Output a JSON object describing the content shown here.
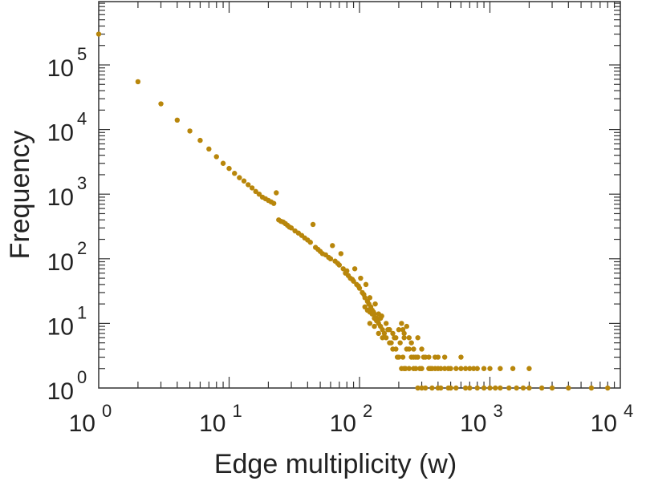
{
  "chart_data": {
    "type": "scatter",
    "xlabel": "Edge multiplicity (w)",
    "ylabel": "Frequency",
    "xscale": "log",
    "yscale": "log",
    "xlim": [
      1,
      10000
    ],
    "ylim": [
      1,
      1000000
    ],
    "grid": false,
    "legend": "none",
    "marker_color": "#b8860b",
    "x_ticks": [
      {
        "base": "10",
        "exp": "0",
        "value": 1
      },
      {
        "base": "10",
        "exp": "1",
        "value": 10
      },
      {
        "base": "10",
        "exp": "2",
        "value": 100
      },
      {
        "base": "10",
        "exp": "3",
        "value": 1000
      },
      {
        "base": "10",
        "exp": "4",
        "value": 10000
      }
    ],
    "y_ticks": [
      {
        "base": "10",
        "exp": "0",
        "value": 1
      },
      {
        "base": "10",
        "exp": "1",
        "value": 10
      },
      {
        "base": "10",
        "exp": "2",
        "value": 100
      },
      {
        "base": "10",
        "exp": "3",
        "value": 1000
      },
      {
        "base": "10",
        "exp": "4",
        "value": 10000
      },
      {
        "base": "10",
        "exp": "5",
        "value": 100000
      }
    ],
    "series": [
      {
        "points": [
          [
            1,
            300000
          ],
          [
            2,
            55000
          ],
          [
            3,
            25000
          ],
          [
            4,
            14000
          ],
          [
            5,
            9500
          ],
          [
            6,
            6800
          ],
          [
            7,
            5000
          ],
          [
            8,
            3800
          ],
          [
            9,
            3000
          ],
          [
            10,
            2500
          ],
          [
            11,
            2100
          ],
          [
            12,
            1800
          ],
          [
            13,
            1600
          ],
          [
            14,
            1400
          ],
          [
            15,
            1250
          ],
          [
            16,
            1100
          ],
          [
            17,
            1000
          ],
          [
            18,
            900
          ],
          [
            19,
            850
          ],
          [
            20,
            800
          ],
          [
            21,
            760
          ],
          [
            22,
            720
          ],
          [
            23,
            1050
          ],
          [
            24,
            400
          ],
          [
            25,
            380
          ],
          [
            26,
            370
          ],
          [
            27,
            350
          ],
          [
            28,
            330
          ],
          [
            29,
            310
          ],
          [
            30,
            300
          ],
          [
            32,
            270
          ],
          [
            34,
            250
          ],
          [
            36,
            230
          ],
          [
            38,
            210
          ],
          [
            40,
            195
          ],
          [
            42,
            180
          ],
          [
            44,
            340
          ],
          [
            46,
            150
          ],
          [
            48,
            140
          ],
          [
            50,
            130
          ],
          [
            52,
            120
          ],
          [
            55,
            115
          ],
          [
            58,
            105
          ],
          [
            60,
            100
          ],
          [
            62,
            160
          ],
          [
            65,
            92
          ],
          [
            68,
            85
          ],
          [
            70,
            80
          ],
          [
            72,
            120
          ],
          [
            75,
            70
          ],
          [
            78,
            60
          ],
          [
            80,
            65
          ],
          [
            82,
            55
          ],
          [
            85,
            50
          ],
          [
            88,
            48
          ],
          [
            90,
            45
          ],
          [
            92,
            70
          ],
          [
            95,
            40
          ],
          [
            98,
            38
          ],
          [
            100,
            35
          ],
          [
            102,
            50
          ],
          [
            105,
            30
          ],
          [
            108,
            28
          ],
          [
            110,
            25
          ],
          [
            112,
            40
          ],
          [
            115,
            22
          ],
          [
            118,
            20
          ],
          [
            120,
            25
          ],
          [
            122,
            18
          ],
          [
            125,
            16
          ],
          [
            128,
            15
          ],
          [
            130,
            14
          ],
          [
            132,
            20
          ],
          [
            135,
            12
          ],
          [
            138,
            11
          ],
          [
            140,
            10
          ],
          [
            145,
            9
          ],
          [
            148,
            13
          ],
          [
            150,
            8
          ],
          [
            155,
            7
          ],
          [
            160,
            6
          ],
          [
            165,
            8
          ],
          [
            170,
            5
          ],
          [
            175,
            5
          ],
          [
            180,
            4
          ],
          [
            185,
            6
          ],
          [
            190,
            4
          ],
          [
            195,
            3
          ],
          [
            200,
            3
          ],
          [
            205,
            5
          ],
          [
            210,
            2
          ],
          [
            215,
            3
          ],
          [
            220,
            2
          ],
          [
            225,
            2
          ],
          [
            230,
            4
          ],
          [
            240,
            2
          ],
          [
            250,
            3
          ],
          [
            260,
            2
          ],
          [
            270,
            2
          ],
          [
            280,
            1
          ],
          [
            290,
            2
          ],
          [
            300,
            1
          ],
          [
            310,
            3
          ],
          [
            320,
            1
          ],
          [
            340,
            2
          ],
          [
            360,
            1
          ],
          [
            380,
            2
          ],
          [
            400,
            1
          ],
          [
            420,
            1
          ],
          [
            450,
            2
          ],
          [
            480,
            1
          ],
          [
            500,
            1
          ],
          [
            550,
            1
          ],
          [
            600,
            2
          ],
          [
            650,
            1
          ],
          [
            700,
            1
          ],
          [
            800,
            1
          ],
          [
            900,
            1
          ],
          [
            1000,
            1
          ],
          [
            1100,
            1
          ],
          [
            1200,
            1
          ],
          [
            1400,
            1
          ],
          [
            1600,
            1
          ],
          [
            1800,
            1
          ],
          [
            2000,
            1
          ],
          [
            2500,
            1
          ],
          [
            3000,
            1
          ],
          [
            4000,
            1
          ],
          [
            6000,
            1
          ],
          [
            8000,
            1
          ],
          [
            210,
            10
          ],
          [
            215,
            8
          ],
          [
            220,
            7
          ],
          [
            230,
            9
          ],
          [
            240,
            6
          ],
          [
            250,
            5
          ],
          [
            260,
            4
          ],
          [
            270,
            3
          ],
          [
            280,
            6
          ],
          [
            300,
            4
          ],
          [
            320,
            3
          ],
          [
            340,
            3
          ],
          [
            360,
            2
          ],
          [
            380,
            3
          ],
          [
            400,
            2
          ],
          [
            420,
            2
          ],
          [
            450,
            3
          ],
          [
            480,
            2
          ],
          [
            500,
            2
          ],
          [
            550,
            2
          ],
          [
            600,
            3
          ],
          [
            650,
            2
          ],
          [
            700,
            2
          ],
          [
            750,
            2
          ],
          [
            800,
            2
          ],
          [
            900,
            2
          ],
          [
            1000,
            2
          ],
          [
            1200,
            2
          ],
          [
            1500,
            2
          ],
          [
            2000,
            2
          ],
          [
            120,
            10
          ],
          [
            130,
            9
          ],
          [
            140,
            7
          ],
          [
            150,
            6
          ],
          [
            160,
            10
          ],
          [
            170,
            8
          ],
          [
            180,
            7
          ],
          [
            190,
            6
          ],
          [
            200,
            8
          ],
          [
            220,
            6
          ],
          [
            240,
            4
          ],
          [
            260,
            3
          ],
          [
            280,
            3
          ],
          [
            300,
            2
          ],
          [
            350,
            2
          ],
          [
            400,
            3
          ],
          [
            110,
            18
          ],
          [
            115,
            16
          ],
          [
            120,
            15
          ],
          [
            125,
            14
          ],
          [
            130,
            12
          ],
          [
            135,
            11
          ],
          [
            140,
            14
          ],
          [
            145,
            12
          ]
        ]
      }
    ]
  }
}
